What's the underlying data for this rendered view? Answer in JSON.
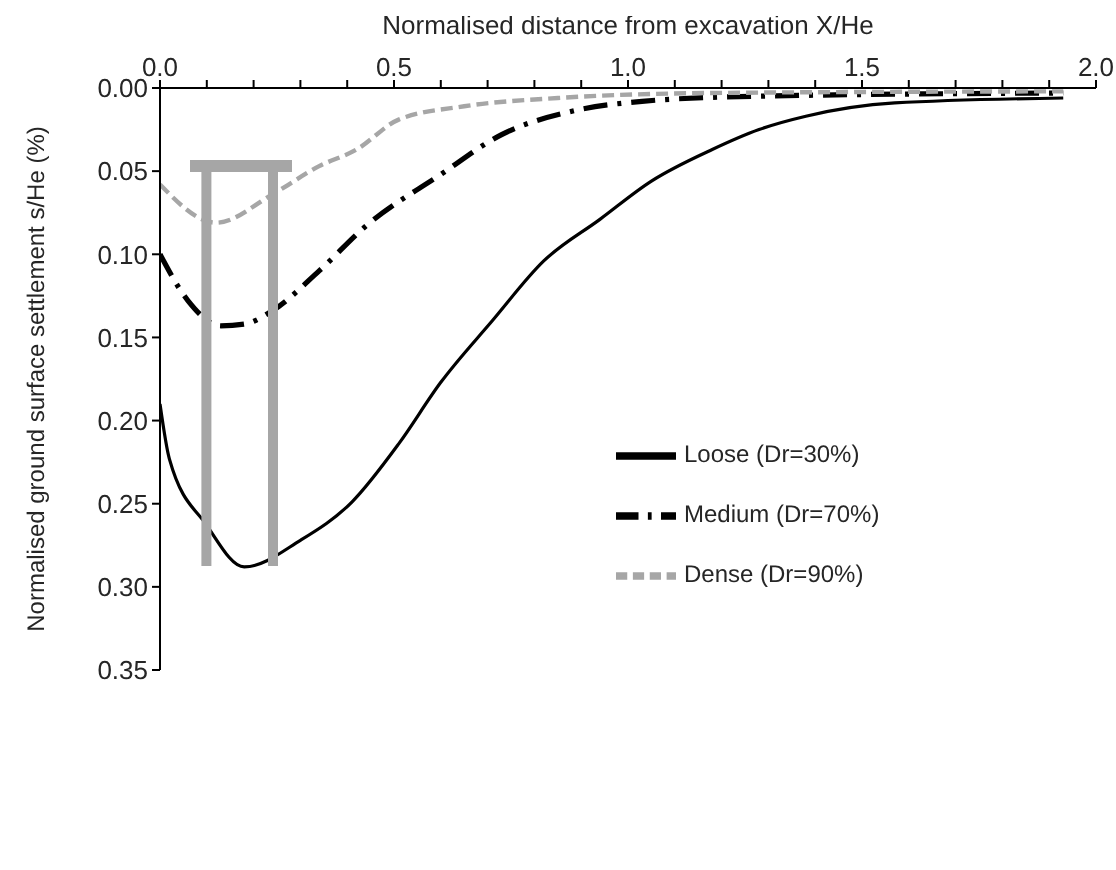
{
  "chart_data": {
    "type": "line",
    "xlabel": "Normalised distance from excavation X/He",
    "ylabel": "Normalised ground surface settlement s/He (%)",
    "xlim": [
      0,
      2
    ],
    "xticks": [
      {
        "value": 0,
        "label": "0.0"
      },
      {
        "value": 0.1,
        "label": null
      },
      {
        "value": 0.2,
        "label": null
      },
      {
        "value": 0.3,
        "label": null
      },
      {
        "value": 0.4,
        "label": null
      },
      {
        "value": 0.5,
        "label": "0.5"
      },
      {
        "value": 0.6,
        "label": null
      },
      {
        "value": 0.7,
        "label": null
      },
      {
        "value": 0.8,
        "label": null
      },
      {
        "value": 0.9,
        "label": null
      },
      {
        "value": 1,
        "label": "1.0"
      },
      {
        "value": 1.1,
        "label": null
      },
      {
        "value": 1.2,
        "label": null
      },
      {
        "value": 1.3,
        "label": null
      },
      {
        "value": 1.4,
        "label": null
      },
      {
        "value": 1.5,
        "label": "1.5"
      },
      {
        "value": 1.6,
        "label": null
      },
      {
        "value": 1.7,
        "label": null
      },
      {
        "value": 1.8,
        "label": null
      },
      {
        "value": 1.9,
        "label": null
      },
      {
        "value": 2,
        "label": "2.0"
      }
    ],
    "ylim": [
      0.35,
      0
    ],
    "yticks": [
      {
        "value": 0,
        "label": "0.00"
      },
      {
        "value": 0.05,
        "label": "0.05"
      },
      {
        "value": 0.1,
        "label": "0.10"
      },
      {
        "value": 0.15,
        "label": "0.15"
      },
      {
        "value": 0.2,
        "label": "0.20"
      },
      {
        "value": 0.25,
        "label": "0.25"
      },
      {
        "value": 0.3,
        "label": "0.30"
      },
      {
        "value": 0.35,
        "label": "0.35"
      }
    ],
    "grid": false,
    "legend": "center",
    "marker": "none",
    "series": [
      {
        "name": "Loose (Dr=30%)",
        "color": "#000000",
        "line_style": "solid",
        "x": [
          0,
          0.02,
          0.1,
          0.18,
          0.3,
          0.41,
          0.51,
          0.6,
          0.71,
          0.82,
          0.94,
          1.05,
          1.18,
          1.28,
          1.38,
          1.57,
          1.93
        ],
        "values": [
          0.19,
          0.223,
          0.263,
          0.288,
          0.272,
          0.249,
          0.214,
          0.177,
          0.14,
          0.104,
          0.079,
          0.056,
          0.037,
          0.025,
          0.017,
          0.009,
          0.006
        ]
      },
      {
        "name": "Medium (Dr=70%)",
        "color": "#000000",
        "line_style": "dashdot",
        "x": [
          0,
          0.06,
          0.13,
          0.18,
          0.24,
          0.34,
          0.44,
          0.6,
          0.73,
          0.88,
          1.03,
          1.27,
          1.93
        ],
        "values": [
          0.1,
          0.128,
          0.143,
          0.142,
          0.134,
          0.11,
          0.083,
          0.052,
          0.028,
          0.014,
          0.008,
          0.005,
          0.003
        ]
      },
      {
        "name": "Dense (Dr=90%)",
        "color": "#a6a6a6",
        "line_style": "dashed",
        "x": [
          0,
          0.12,
          0.24,
          0.34,
          0.42,
          0.51,
          0.65,
          0.85,
          1.18,
          1.93
        ],
        "values": [
          0.058,
          0.081,
          0.064,
          0.047,
          0.037,
          0.019,
          0.011,
          0.006,
          0.003,
          0.002
        ]
      }
    ]
  }
}
